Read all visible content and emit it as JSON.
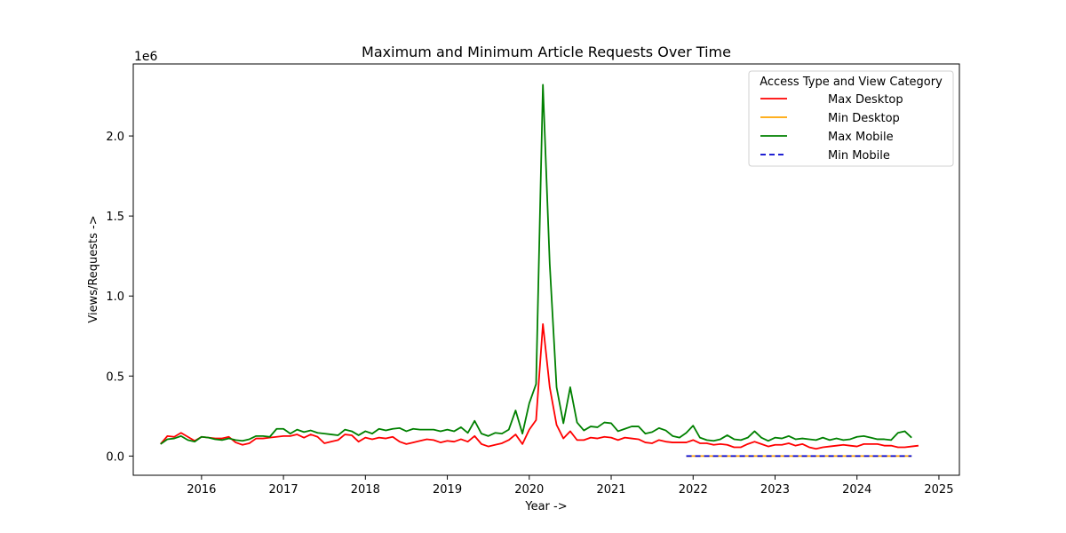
{
  "chart_data": {
    "type": "line",
    "title": "Maximum and Minimum Article Requests Over Time",
    "xlabel": "Year ->",
    "ylabel": "Views/Requests ->",
    "y_offset_label": "1e6",
    "x_ticks": [
      "2016",
      "2017",
      "2018",
      "2019",
      "2020",
      "2021",
      "2022",
      "2023",
      "2024",
      "2025"
    ],
    "y_ticks": [
      "0.0",
      "0.5",
      "1.0",
      "1.5",
      "2.0"
    ],
    "xlim": [
      "2015-03",
      "2025-04"
    ],
    "ylim": [
      -0.12,
      2.45
    ],
    "y_unit": "millions",
    "legend": {
      "title": "Access Type and View Category",
      "placement": "top-right",
      "entries": [
        "Max Desktop",
        "Min Desktop",
        "Max Mobile",
        "Min Mobile"
      ]
    },
    "grid": false,
    "series": [
      {
        "name": "Max Desktop",
        "color": "#ff0000",
        "style": "solid",
        "start": "2015-07",
        "values": [
          0.075,
          0.125,
          0.12,
          0.145,
          0.12,
          0.095,
          0.12,
          0.115,
          0.11,
          0.11,
          0.12,
          0.085,
          0.07,
          0.08,
          0.11,
          0.11,
          0.115,
          0.12,
          0.125,
          0.125,
          0.135,
          0.115,
          0.135,
          0.12,
          0.08,
          0.09,
          0.1,
          0.135,
          0.13,
          0.09,
          0.115,
          0.105,
          0.115,
          0.11,
          0.12,
          0.09,
          0.075,
          0.085,
          0.095,
          0.105,
          0.1,
          0.085,
          0.095,
          0.09,
          0.105,
          0.09,
          0.125,
          0.075,
          0.06,
          0.07,
          0.08,
          0.1,
          0.135,
          0.075,
          0.165,
          0.225,
          0.825,
          0.43,
          0.195,
          0.11,
          0.155,
          0.1,
          0.1,
          0.115,
          0.11,
          0.12,
          0.115,
          0.1,
          0.115,
          0.11,
          0.105,
          0.085,
          0.08,
          0.1,
          0.09,
          0.085,
          0.085,
          0.085,
          0.1,
          0.08,
          0.08,
          0.07,
          0.075,
          0.07,
          0.055,
          0.055,
          0.075,
          0.09,
          0.075,
          0.06,
          0.07,
          0.07,
          0.08,
          0.065,
          0.075,
          0.055,
          0.045,
          0.055,
          0.06,
          0.065,
          0.07,
          0.065,
          0.06,
          0.075,
          0.075,
          0.075,
          0.065,
          0.065,
          0.055,
          0.055,
          0.06,
          0.065
        ]
      },
      {
        "name": "Min Desktop",
        "color": "#ffa500",
        "style": "solid",
        "start": "2021-12",
        "end": "2024-09",
        "values": [
          0,
          0
        ]
      },
      {
        "name": "Max Mobile",
        "color": "#008000",
        "style": "solid",
        "start": "2015-07",
        "values": [
          0.075,
          0.105,
          0.11,
          0.125,
          0.1,
          0.09,
          0.12,
          0.115,
          0.105,
          0.1,
          0.11,
          0.1,
          0.095,
          0.105,
          0.125,
          0.125,
          0.12,
          0.17,
          0.17,
          0.14,
          0.165,
          0.15,
          0.16,
          0.145,
          0.14,
          0.135,
          0.13,
          0.165,
          0.155,
          0.13,
          0.155,
          0.14,
          0.17,
          0.16,
          0.17,
          0.175,
          0.155,
          0.17,
          0.165,
          0.165,
          0.165,
          0.155,
          0.165,
          0.155,
          0.18,
          0.145,
          0.22,
          0.14,
          0.125,
          0.145,
          0.14,
          0.165,
          0.285,
          0.14,
          0.33,
          0.45,
          2.32,
          1.2,
          0.43,
          0.205,
          0.43,
          0.21,
          0.16,
          0.185,
          0.18,
          0.21,
          0.205,
          0.155,
          0.17,
          0.185,
          0.185,
          0.14,
          0.15,
          0.175,
          0.16,
          0.125,
          0.115,
          0.145,
          0.19,
          0.115,
          0.1,
          0.095,
          0.105,
          0.13,
          0.105,
          0.1,
          0.115,
          0.155,
          0.115,
          0.095,
          0.115,
          0.11,
          0.125,
          0.105,
          0.11,
          0.105,
          0.1,
          0.115,
          0.1,
          0.11,
          0.1,
          0.105,
          0.12,
          0.125,
          0.115,
          0.105,
          0.105,
          0.1,
          0.145,
          0.155,
          0.115
        ]
      },
      {
        "name": "Min Mobile",
        "color": "#0000cd",
        "style": "dashed",
        "start": "2021-12",
        "end": "2024-09",
        "values": [
          0,
          0
        ]
      }
    ]
  }
}
